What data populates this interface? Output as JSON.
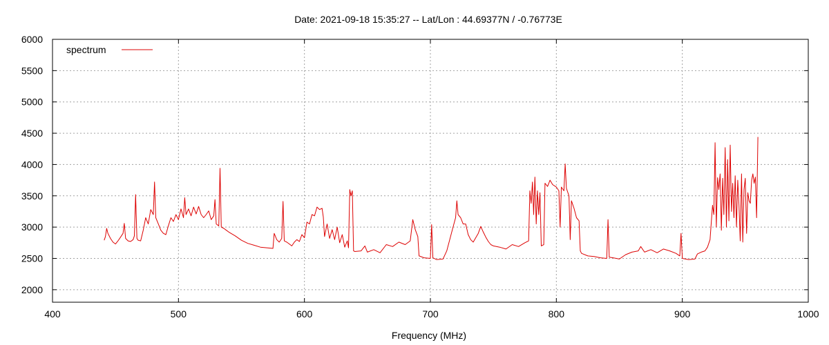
{
  "chart_data": {
    "type": "line",
    "title": "Date: 2021-09-18 15:35:27  --  Lat/Lon : 44.69377N / -0.76773E",
    "xlabel": "Frequency (MHz)",
    "ylabel": "",
    "xlim": [
      400,
      1000
    ],
    "ylim": [
      1800,
      6000
    ],
    "x_ticks": [
      400,
      500,
      600,
      700,
      800,
      900,
      1000
    ],
    "y_ticks": [
      2000,
      2500,
      3000,
      3500,
      4000,
      4500,
      5000,
      5500,
      6000
    ],
    "grid": true,
    "legend": "top-left",
    "colors": {
      "series": "#dd0000",
      "grid": "#a0a0a0",
      "axis": "#000000"
    },
    "series": [
      {
        "name": "spectrum",
        "points": [
          [
            441,
            2790
          ],
          [
            442,
            2850
          ],
          [
            443,
            2980
          ],
          [
            444,
            2900
          ],
          [
            446,
            2820
          ],
          [
            448,
            2760
          ],
          [
            450,
            2730
          ],
          [
            452,
            2780
          ],
          [
            454,
            2840
          ],
          [
            456,
            2900
          ],
          [
            457,
            3060
          ],
          [
            458,
            2820
          ],
          [
            460,
            2780
          ],
          [
            462,
            2770
          ],
          [
            464,
            2800
          ],
          [
            465,
            2860
          ],
          [
            466,
            3520
          ],
          [
            467,
            2820
          ],
          [
            468,
            2790
          ],
          [
            470,
            2780
          ],
          [
            472,
            2950
          ],
          [
            474,
            3150
          ],
          [
            476,
            3050
          ],
          [
            478,
            3280
          ],
          [
            480,
            3200
          ],
          [
            481,
            3720
          ],
          [
            482,
            3150
          ],
          [
            484,
            3050
          ],
          [
            486,
            2950
          ],
          [
            488,
            2900
          ],
          [
            490,
            2880
          ],
          [
            492,
            3020
          ],
          [
            494,
            3150
          ],
          [
            496,
            3090
          ],
          [
            498,
            3200
          ],
          [
            500,
            3120
          ],
          [
            502,
            3290
          ],
          [
            504,
            3150
          ],
          [
            505,
            3470
          ],
          [
            506,
            3200
          ],
          [
            508,
            3290
          ],
          [
            510,
            3180
          ],
          [
            512,
            3320
          ],
          [
            514,
            3210
          ],
          [
            516,
            3330
          ],
          [
            518,
            3200
          ],
          [
            520,
            3150
          ],
          [
            522,
            3200
          ],
          [
            524,
            3260
          ],
          [
            526,
            3120
          ],
          [
            528,
            3180
          ],
          [
            529,
            3440
          ],
          [
            530,
            3050
          ],
          [
            532,
            3020
          ],
          [
            533,
            3940
          ],
          [
            534,
            3000
          ],
          [
            536,
            2980
          ],
          [
            538,
            2950
          ],
          [
            540,
            2920
          ],
          [
            545,
            2860
          ],
          [
            550,
            2790
          ],
          [
            555,
            2740
          ],
          [
            560,
            2710
          ],
          [
            565,
            2680
          ],
          [
            570,
            2670
          ],
          [
            575,
            2660
          ],
          [
            576,
            2900
          ],
          [
            578,
            2800
          ],
          [
            580,
            2760
          ],
          [
            582,
            2820
          ],
          [
            583,
            3410
          ],
          [
            584,
            2780
          ],
          [
            586,
            2760
          ],
          [
            588,
            2730
          ],
          [
            590,
            2700
          ],
          [
            592,
            2760
          ],
          [
            594,
            2800
          ],
          [
            596,
            2770
          ],
          [
            598,
            2880
          ],
          [
            600,
            2830
          ],
          [
            602,
            3080
          ],
          [
            604,
            3050
          ],
          [
            606,
            3200
          ],
          [
            608,
            3180
          ],
          [
            610,
            3320
          ],
          [
            612,
            3280
          ],
          [
            614,
            3300
          ],
          [
            615,
            3160
          ],
          [
            616,
            2850
          ],
          [
            618,
            3050
          ],
          [
            620,
            2820
          ],
          [
            622,
            2960
          ],
          [
            624,
            2800
          ],
          [
            626,
            3000
          ],
          [
            628,
            2750
          ],
          [
            630,
            2880
          ],
          [
            632,
            2680
          ],
          [
            634,
            2780
          ],
          [
            635,
            2670
          ],
          [
            636,
            3600
          ],
          [
            637,
            3500
          ],
          [
            638,
            3580
          ],
          [
            639,
            2620
          ],
          [
            640,
            2610
          ],
          [
            645,
            2620
          ],
          [
            648,
            2700
          ],
          [
            650,
            2600
          ],
          [
            655,
            2640
          ],
          [
            660,
            2590
          ],
          [
            665,
            2720
          ],
          [
            670,
            2690
          ],
          [
            675,
            2760
          ],
          [
            680,
            2720
          ],
          [
            684,
            2780
          ],
          [
            686,
            3120
          ],
          [
            688,
            2960
          ],
          [
            690,
            2850
          ],
          [
            691,
            2540
          ],
          [
            695,
            2510
          ],
          [
            700,
            2500
          ],
          [
            701,
            3040
          ],
          [
            702,
            2510
          ],
          [
            705,
            2480
          ],
          [
            710,
            2490
          ],
          [
            713,
            2620
          ],
          [
            716,
            2850
          ],
          [
            718,
            3000
          ],
          [
            720,
            3150
          ],
          [
            721,
            3420
          ],
          [
            722,
            3200
          ],
          [
            724,
            3150
          ],
          [
            726,
            3050
          ],
          [
            728,
            3050
          ],
          [
            730,
            2880
          ],
          [
            732,
            2800
          ],
          [
            734,
            2760
          ],
          [
            736,
            2830
          ],
          [
            738,
            2900
          ],
          [
            740,
            3010
          ],
          [
            742,
            2920
          ],
          [
            744,
            2840
          ],
          [
            746,
            2770
          ],
          [
            748,
            2720
          ],
          [
            750,
            2700
          ],
          [
            755,
            2680
          ],
          [
            760,
            2650
          ],
          [
            765,
            2720
          ],
          [
            770,
            2690
          ],
          [
            775,
            2750
          ],
          [
            778,
            2780
          ],
          [
            779,
            3580
          ],
          [
            780,
            3380
          ],
          [
            781,
            3720
          ],
          [
            782,
            3200
          ],
          [
            783,
            3800
          ],
          [
            784,
            3050
          ],
          [
            785,
            3580
          ],
          [
            786,
            3200
          ],
          [
            787,
            3550
          ],
          [
            788,
            2700
          ],
          [
            790,
            2720
          ],
          [
            791,
            3700
          ],
          [
            793,
            3650
          ],
          [
            795,
            3750
          ],
          [
            797,
            3680
          ],
          [
            800,
            3640
          ],
          [
            802,
            3580
          ],
          [
            803,
            3000
          ],
          [
            804,
            3640
          ],
          [
            806,
            3580
          ],
          [
            807,
            4010
          ],
          [
            808,
            3620
          ],
          [
            810,
            3500
          ],
          [
            811,
            2800
          ],
          [
            812,
            3420
          ],
          [
            814,
            3300
          ],
          [
            816,
            3150
          ],
          [
            818,
            3100
          ],
          [
            819,
            2620
          ],
          [
            820,
            2580
          ],
          [
            825,
            2540
          ],
          [
            830,
            2530
          ],
          [
            835,
            2510
          ],
          [
            840,
            2500
          ],
          [
            841,
            3120
          ],
          [
            842,
            2520
          ],
          [
            845,
            2510
          ],
          [
            850,
            2490
          ],
          [
            855,
            2560
          ],
          [
            860,
            2600
          ],
          [
            865,
            2620
          ],
          [
            867,
            2690
          ],
          [
            870,
            2600
          ],
          [
            875,
            2640
          ],
          [
            880,
            2590
          ],
          [
            885,
            2650
          ],
          [
            890,
            2620
          ],
          [
            895,
            2580
          ],
          [
            898,
            2540
          ],
          [
            899,
            2900
          ],
          [
            900,
            2500
          ],
          [
            905,
            2480
          ],
          [
            910,
            2490
          ],
          [
            912,
            2570
          ],
          [
            915,
            2600
          ],
          [
            918,
            2620
          ],
          [
            920,
            2680
          ],
          [
            922,
            2800
          ],
          [
            924,
            3350
          ],
          [
            925,
            3200
          ],
          [
            926,
            4350
          ],
          [
            927,
            3000
          ],
          [
            928,
            3790
          ],
          [
            929,
            3600
          ],
          [
            930,
            3850
          ],
          [
            931,
            2950
          ],
          [
            932,
            3780
          ],
          [
            933,
            3200
          ],
          [
            934,
            4270
          ],
          [
            935,
            3000
          ],
          [
            936,
            4080
          ],
          [
            937,
            3100
          ],
          [
            938,
            4310
          ],
          [
            939,
            3250
          ],
          [
            940,
            3700
          ],
          [
            941,
            3150
          ],
          [
            942,
            3820
          ],
          [
            943,
            3000
          ],
          [
            944,
            3750
          ],
          [
            945,
            3350
          ],
          [
            946,
            2780
          ],
          [
            947,
            3850
          ],
          [
            948,
            2760
          ],
          [
            949,
            3600
          ],
          [
            950,
            3780
          ],
          [
            951,
            2900
          ],
          [
            952,
            3550
          ],
          [
            953,
            3420
          ],
          [
            954,
            3380
          ],
          [
            955,
            3750
          ],
          [
            956,
            3850
          ],
          [
            957,
            3700
          ],
          [
            958,
            3800
          ],
          [
            959,
            3150
          ],
          [
            960,
            4440
          ]
        ]
      }
    ]
  }
}
